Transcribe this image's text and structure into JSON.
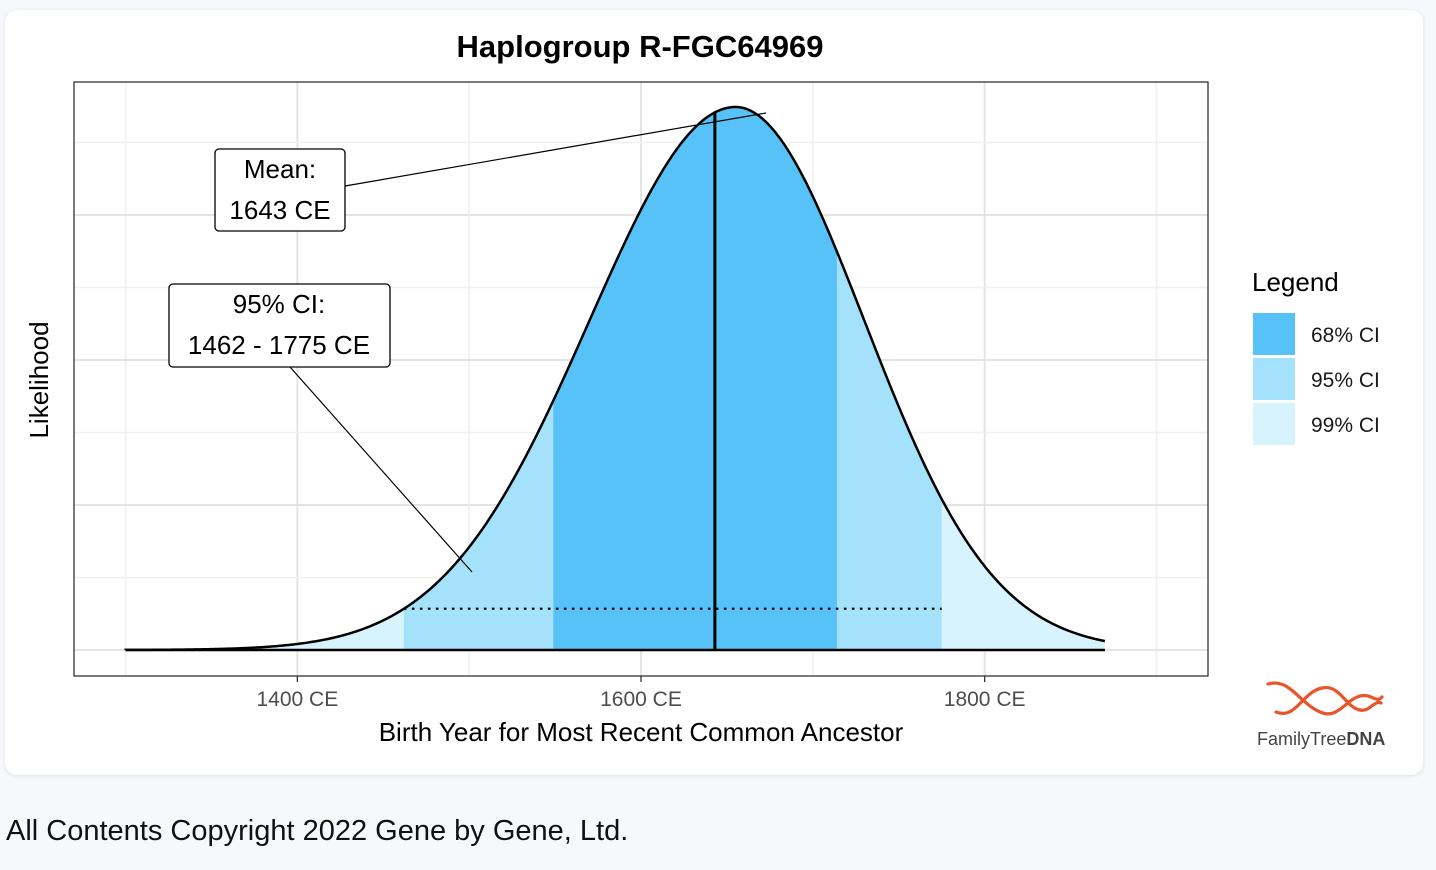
{
  "page": {
    "copyright": "All Contents Copyright 2022 Gene by Gene, Ltd.",
    "logo": {
      "text_regular": "FamilyTree",
      "text_bold": "DNA",
      "icon": "dna-helix-icon",
      "color": "#e8552b"
    }
  },
  "chart_data": {
    "type": "area",
    "title": "Haplogroup R-FGC64969",
    "xlabel": "Birth Year for Most Recent Common Ancestor",
    "ylabel": "Likelihood",
    "xlim": [
      1270,
      1930
    ],
    "xticks": [
      {
        "value": 1400,
        "label": "1400 CE"
      },
      {
        "value": 1600,
        "label": "1600 CE"
      },
      {
        "value": 1800,
        "label": "1800 CE"
      }
    ],
    "grid": true,
    "distribution": {
      "mode": 1655,
      "sigma_left": 85,
      "sigma_right": 75,
      "start": 1300,
      "end": 1870
    },
    "mean": 1643,
    "intervals": [
      {
        "name": "99% CI",
        "from": 1300,
        "to": 1870,
        "color": "#d7f3fd"
      },
      {
        "name": "95% CI",
        "from": 1462,
        "to": 1775,
        "color": "#a4e1fb"
      },
      {
        "name": "68% CI",
        "from": 1549,
        "to": 1714,
        "color": "#57c2f7"
      }
    ],
    "legend": {
      "title": "Legend",
      "position": "right",
      "entries": [
        {
          "label": "68% CI",
          "color": "#57c2f7"
        },
        {
          "label": "95% CI",
          "color": "#a4e1fb"
        },
        {
          "label": "99% CI",
          "color": "#d7f3fd"
        }
      ]
    },
    "annotations": {
      "mean": {
        "line1": "Mean:",
        "line2": "1643 CE"
      },
      "ci95": {
        "line1": "95% CI:",
        "line2": "1462 - 1775 CE"
      }
    }
  }
}
